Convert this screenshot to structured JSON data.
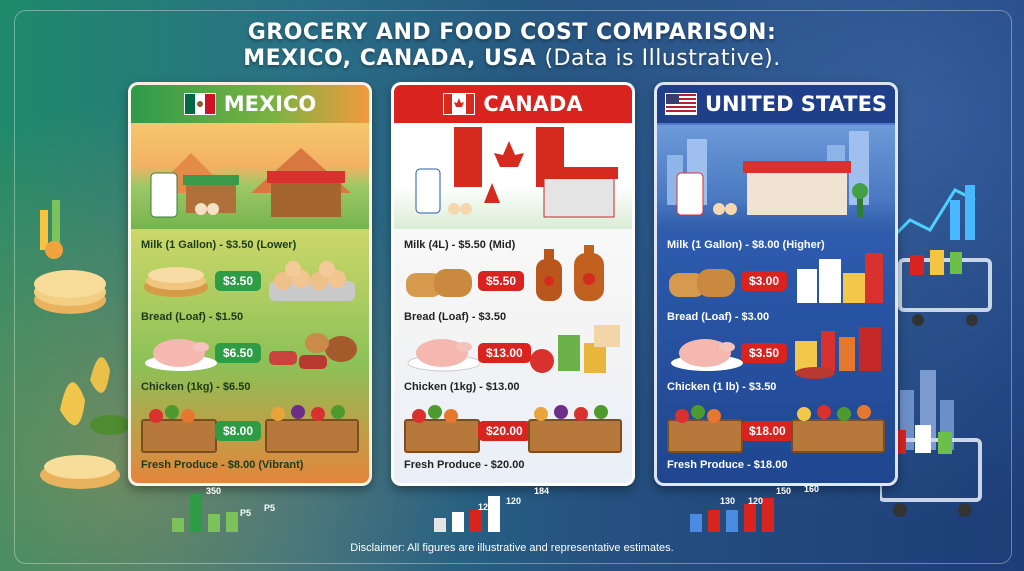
{
  "title": {
    "line1": "GROCERY AND FOOD COST COMPARISON:",
    "line2_main": "MEXICO, CANADA, USA",
    "line2_sub": "(Data is Illustrative)."
  },
  "panels": [
    {
      "country": "MEXICO",
      "milk_line": "Milk (1 Gallon) - $3.50 (Lower)",
      "tag1": "$3.50",
      "bread_line": "Bread (Loaf) - $1.50",
      "tag2": "$6.50",
      "chicken_line": "Chicken (1kg) - $6.50",
      "tag3": "$8.00",
      "produce_line": "Fresh Produce - $8.00 (Vibrant)",
      "chart_labels": [
        "350",
        "P5",
        "P5"
      ]
    },
    {
      "country": "CANADA",
      "milk_line": "Milk (4L) - $5.50 (Mid)",
      "tag1": "$5.50",
      "bread_line": "Bread (Loaf) - $3.50",
      "tag2": "$13.00",
      "chicken_line": "Chicken (1kg) - $13.00",
      "tag3": "$20.00",
      "produce_line": "Fresh Produce - $20.00",
      "chart_labels": [
        "120",
        "120",
        "184"
      ]
    },
    {
      "country": "UNITED STATES",
      "milk_line": "Milk (1 Gallon) - $8.00 (Higher)",
      "tag1": "$3.00",
      "bread_line": "Bread (Loaf) - $3.00",
      "tag2": "$3.50",
      "chicken_line": "Chicken (1 lb) - $3.50",
      "tag3": "$18.00",
      "produce_line": "Fresh Produce - $18.00",
      "chart_labels": [
        "130",
        "120",
        "150",
        "160"
      ]
    }
  ],
  "disclaimer": "Disclaimer: All figures are illustrative and representative estimates.",
  "colors": {
    "mexico_green": "#2e9b45",
    "canada_red": "#d9231f",
    "usa_blue": "#1f3f8a"
  }
}
